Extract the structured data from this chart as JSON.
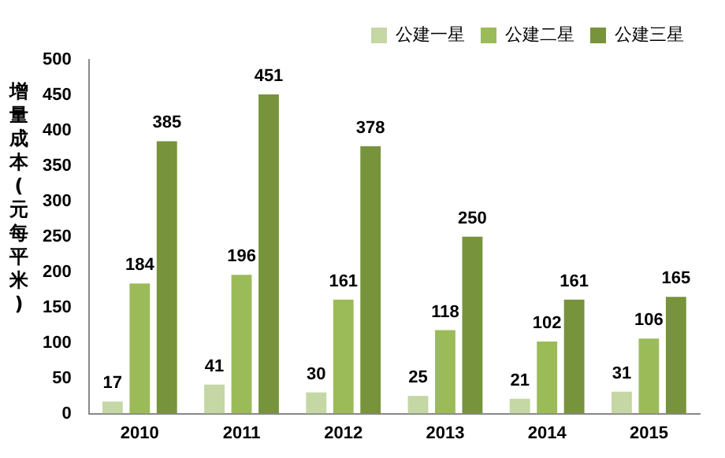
{
  "chart_data": {
    "type": "bar",
    "ylabel": "增量成本(元每平米)",
    "categories": [
      "2010",
      "2011",
      "2012",
      "2013",
      "2014",
      "2015"
    ],
    "series": [
      {
        "name": "公建一星",
        "color": "#c4d7a4",
        "values": [
          17,
          41,
          30,
          25,
          21,
          31
        ]
      },
      {
        "name": "公建二星",
        "color": "#9bbb59",
        "values": [
          184,
          196,
          161,
          118,
          102,
          106
        ]
      },
      {
        "name": "公建三星",
        "color": "#77933c",
        "values": [
          385,
          451,
          378,
          250,
          161,
          165
        ]
      }
    ],
    "ylim": [
      0,
      500
    ],
    "yticks": [
      0,
      50,
      100,
      150,
      200,
      250,
      300,
      350,
      400,
      450,
      500
    ],
    "grid": false,
    "legend": "top right",
    "data_labels": true
  }
}
